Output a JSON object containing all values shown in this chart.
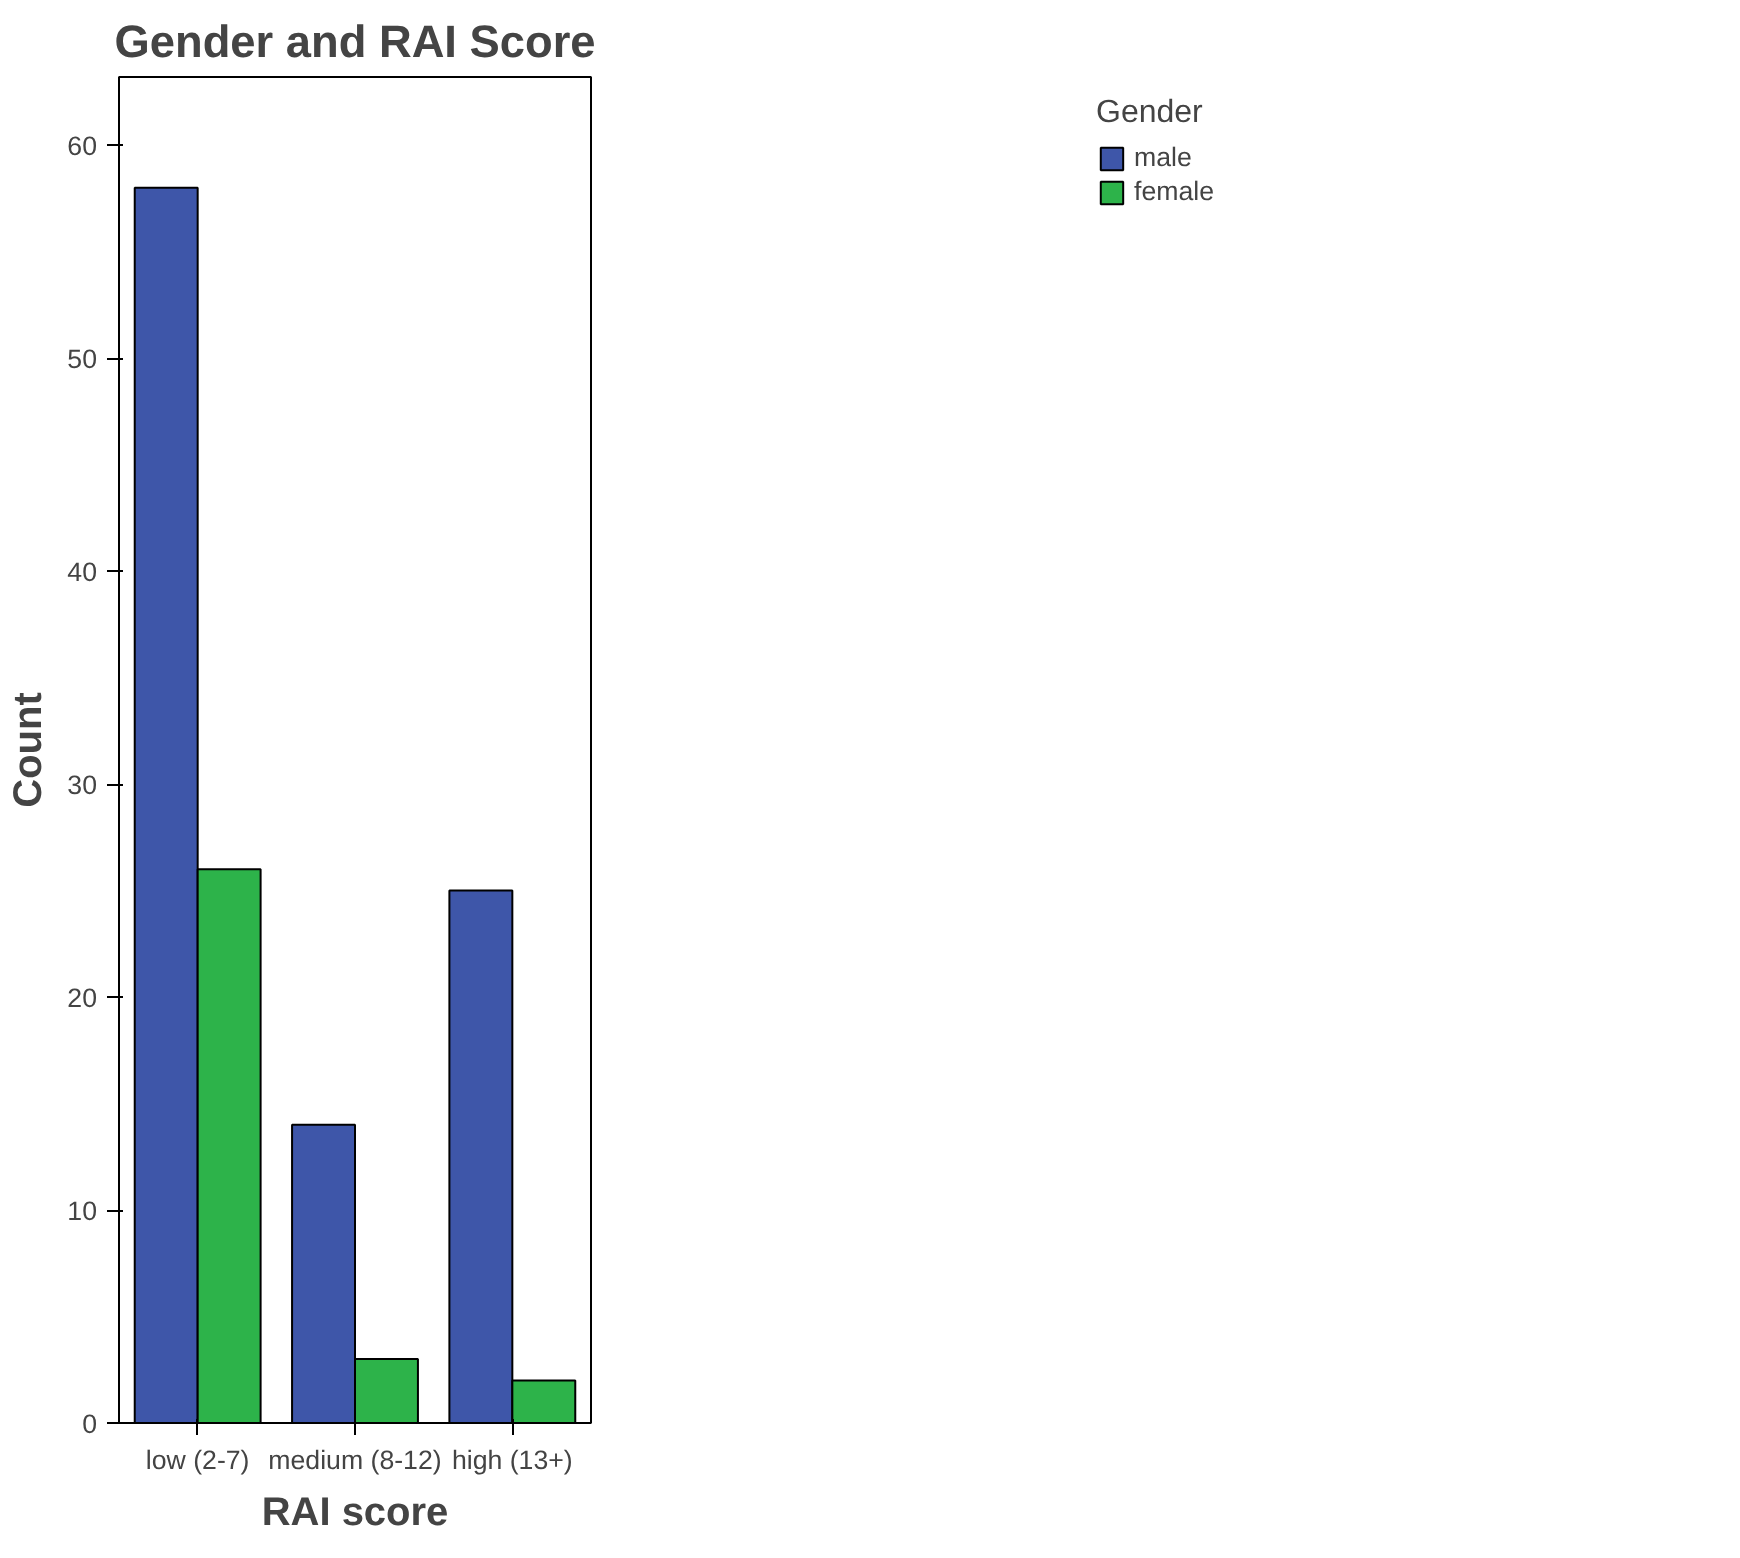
{
  "chart_data": {
    "type": "bar",
    "title": "Gender and RAI Score",
    "xlabel": "RAI score",
    "ylabel": "Count",
    "legend_title": "Gender",
    "categories": [
      "low (2-7)",
      "medium (8-12)",
      "high (13+)"
    ],
    "series": [
      {
        "name": "male",
        "color": "#3e56a9",
        "values": [
          58,
          14,
          25
        ]
      },
      {
        "name": "female",
        "color": "#2db34a",
        "values": [
          26,
          3,
          2
        ]
      }
    ],
    "ylim": [
      0,
      63.2
    ],
    "yticks": [
      0,
      10,
      20,
      30,
      40,
      50,
      60
    ],
    "grid": false,
    "legend": "top right"
  }
}
